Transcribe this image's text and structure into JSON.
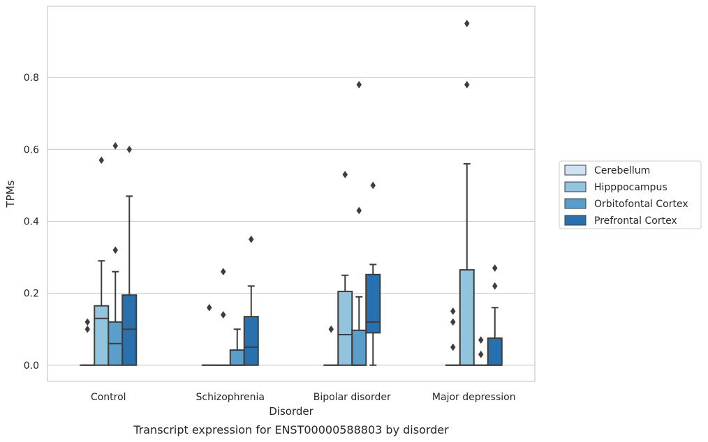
{
  "chart_data": {
    "type": "box",
    "caption": "Transcript expression for ENST00000588803 by disorder",
    "xlabel": "Disorder",
    "ylabel": "TPMs",
    "ylim": [
      -0.045,
      0.998
    ],
    "yticks": [
      "0.0",
      "0.2",
      "0.4",
      "0.6",
      "0.8"
    ],
    "grid": "horizontal",
    "legend_position": "right",
    "categories": [
      "Control",
      "Schizophrenia",
      "Bipolar disorder",
      "Major depression"
    ],
    "series": [
      {
        "name": "Cerebellum",
        "color": "#cfe1f2",
        "boxes": [
          {
            "q1": 0,
            "median": 0,
            "q3": 0,
            "whislo": 0,
            "whishi": 0,
            "fliers": [
              0.1,
              0.12
            ]
          },
          {
            "q1": 0,
            "median": 0,
            "q3": 0,
            "whislo": 0,
            "whishi": 0,
            "fliers": [
              0.16
            ]
          },
          {
            "q1": 0,
            "median": 0,
            "q3": 0,
            "whislo": 0,
            "whishi": 0,
            "fliers": [
              0.1
            ]
          },
          {
            "q1": 0,
            "median": 0,
            "q3": 0,
            "whislo": 0,
            "whishi": 0,
            "fliers": [
              0.05,
              0.12,
              0.15
            ]
          }
        ]
      },
      {
        "name": "Hipppocampus",
        "color": "#93c4de",
        "boxes": [
          {
            "q1": 0,
            "median": 0.13,
            "q3": 0.165,
            "whislo": 0,
            "whishi": 0.29,
            "fliers": [
              0.57
            ]
          },
          {
            "q1": 0,
            "median": 0,
            "q3": 0,
            "whislo": 0,
            "whishi": 0,
            "fliers": [
              0.14,
              0.26
            ]
          },
          {
            "q1": 0,
            "median": 0.085,
            "q3": 0.205,
            "whislo": 0,
            "whishi": 0.25,
            "fliers": [
              0.53
            ]
          },
          {
            "q1": 0,
            "median": 0,
            "q3": 0.265,
            "whislo": 0,
            "whishi": 0.56,
            "fliers": [
              0.78,
              0.95
            ]
          }
        ]
      },
      {
        "name": "Orbitofontal Cortex",
        "color": "#5a9ec9",
        "boxes": [
          {
            "q1": 0,
            "median": 0.06,
            "q3": 0.12,
            "whislo": 0,
            "whishi": 0.26,
            "fliers": [
              0.32,
              0.61
            ]
          },
          {
            "q1": 0,
            "median": 0,
            "q3": 0.042,
            "whislo": 0,
            "whishi": 0.1,
            "fliers": []
          },
          {
            "q1": 0,
            "median": 0,
            "q3": 0.097,
            "whislo": 0,
            "whishi": 0.19,
            "fliers": [
              0.43,
              0.78
            ]
          },
          {
            "q1": 0,
            "median": 0,
            "q3": 0,
            "whislo": 0,
            "whishi": 0,
            "fliers": [
              0.03,
              0.07
            ]
          }
        ]
      },
      {
        "name": "Prefrontal Cortex",
        "color": "#2970ae",
        "boxes": [
          {
            "q1": 0,
            "median": 0.1,
            "q3": 0.195,
            "whislo": 0,
            "whishi": 0.47,
            "fliers": [
              0.6
            ]
          },
          {
            "q1": 0,
            "median": 0.05,
            "q3": 0.135,
            "whislo": 0,
            "whishi": 0.22,
            "fliers": [
              0.35
            ]
          },
          {
            "q1": 0.09,
            "median": 0.12,
            "q3": 0.252,
            "whislo": 0,
            "whishi": 0.28,
            "fliers": [
              0.5
            ]
          },
          {
            "q1": 0,
            "median": 0,
            "q3": 0.075,
            "whislo": 0,
            "whishi": 0.16,
            "fliers": [
              0.22,
              0.27
            ]
          }
        ]
      }
    ]
  }
}
